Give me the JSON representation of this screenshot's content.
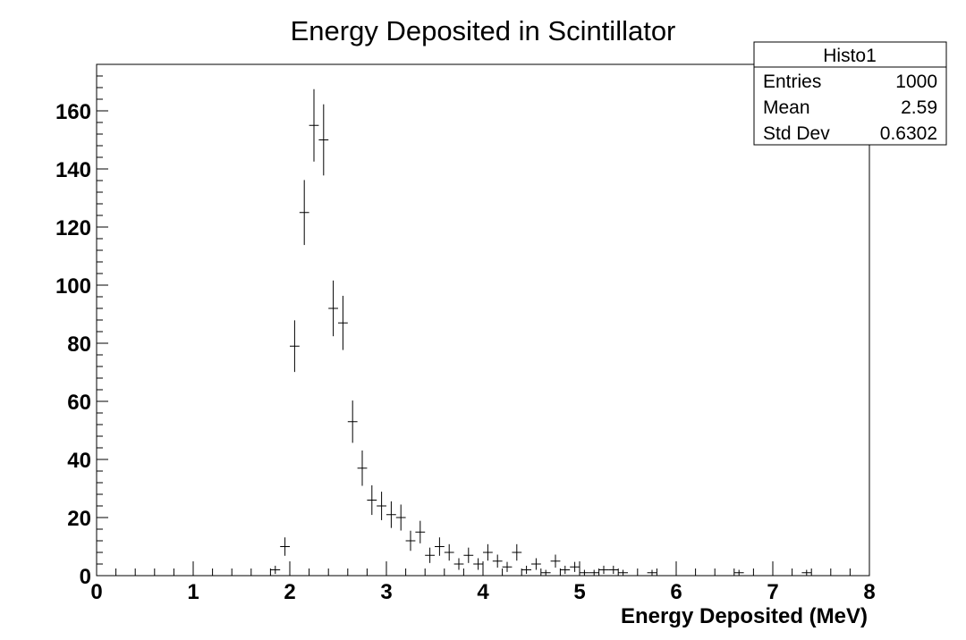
{
  "chart_data": {
    "type": "histogram",
    "title": "Energy Deposited in Scintillator",
    "xlabel": "Energy Deposited (MeV)",
    "ylabel": "",
    "xlim": [
      0,
      8
    ],
    "ylim": [
      0,
      176
    ],
    "x_ticks": [
      "0",
      "1",
      "2",
      "3",
      "4",
      "5",
      "6",
      "7",
      "8"
    ],
    "y_ticks": [
      "0",
      "20",
      "40",
      "60",
      "80",
      "100",
      "120",
      "140",
      "160"
    ],
    "grid": false,
    "bin_width": 0.1,
    "points": [
      {
        "x": 1.85,
        "y": 2
      },
      {
        "x": 1.95,
        "y": 10
      },
      {
        "x": 2.05,
        "y": 79
      },
      {
        "x": 2.15,
        "y": 125
      },
      {
        "x": 2.25,
        "y": 155
      },
      {
        "x": 2.35,
        "y": 150
      },
      {
        "x": 2.45,
        "y": 92
      },
      {
        "x": 2.55,
        "y": 87
      },
      {
        "x": 2.65,
        "y": 53
      },
      {
        "x": 2.75,
        "y": 37
      },
      {
        "x": 2.85,
        "y": 26
      },
      {
        "x": 2.95,
        "y": 24
      },
      {
        "x": 3.05,
        "y": 21
      },
      {
        "x": 3.15,
        "y": 20
      },
      {
        "x": 3.25,
        "y": 12
      },
      {
        "x": 3.35,
        "y": 15
      },
      {
        "x": 3.45,
        "y": 7
      },
      {
        "x": 3.55,
        "y": 10
      },
      {
        "x": 3.65,
        "y": 8
      },
      {
        "x": 3.75,
        "y": 4
      },
      {
        "x": 3.85,
        "y": 7
      },
      {
        "x": 3.95,
        "y": 4
      },
      {
        "x": 4.05,
        "y": 8
      },
      {
        "x": 4.15,
        "y": 5
      },
      {
        "x": 4.25,
        "y": 3
      },
      {
        "x": 4.35,
        "y": 8
      },
      {
        "x": 4.45,
        "y": 2
      },
      {
        "x": 4.55,
        "y": 4
      },
      {
        "x": 4.65,
        "y": 1
      },
      {
        "x": 4.75,
        "y": 5
      },
      {
        "x": 4.85,
        "y": 2
      },
      {
        "x": 4.95,
        "y": 3
      },
      {
        "x": 5.05,
        "y": 1
      },
      {
        "x": 5.15,
        "y": 1
      },
      {
        "x": 5.25,
        "y": 2
      },
      {
        "x": 5.35,
        "y": 2
      },
      {
        "x": 5.45,
        "y": 1
      },
      {
        "x": 5.75,
        "y": 1
      },
      {
        "x": 6.65,
        "y": 1
      },
      {
        "x": 7.35,
        "y": 1
      }
    ],
    "stats_box": {
      "name": "Histo1",
      "rows": [
        {
          "label": "Entries",
          "value": "1000"
        },
        {
          "label": "Mean",
          "value": "2.59"
        },
        {
          "label": "Std Dev",
          "value": "0.6302"
        }
      ]
    }
  }
}
